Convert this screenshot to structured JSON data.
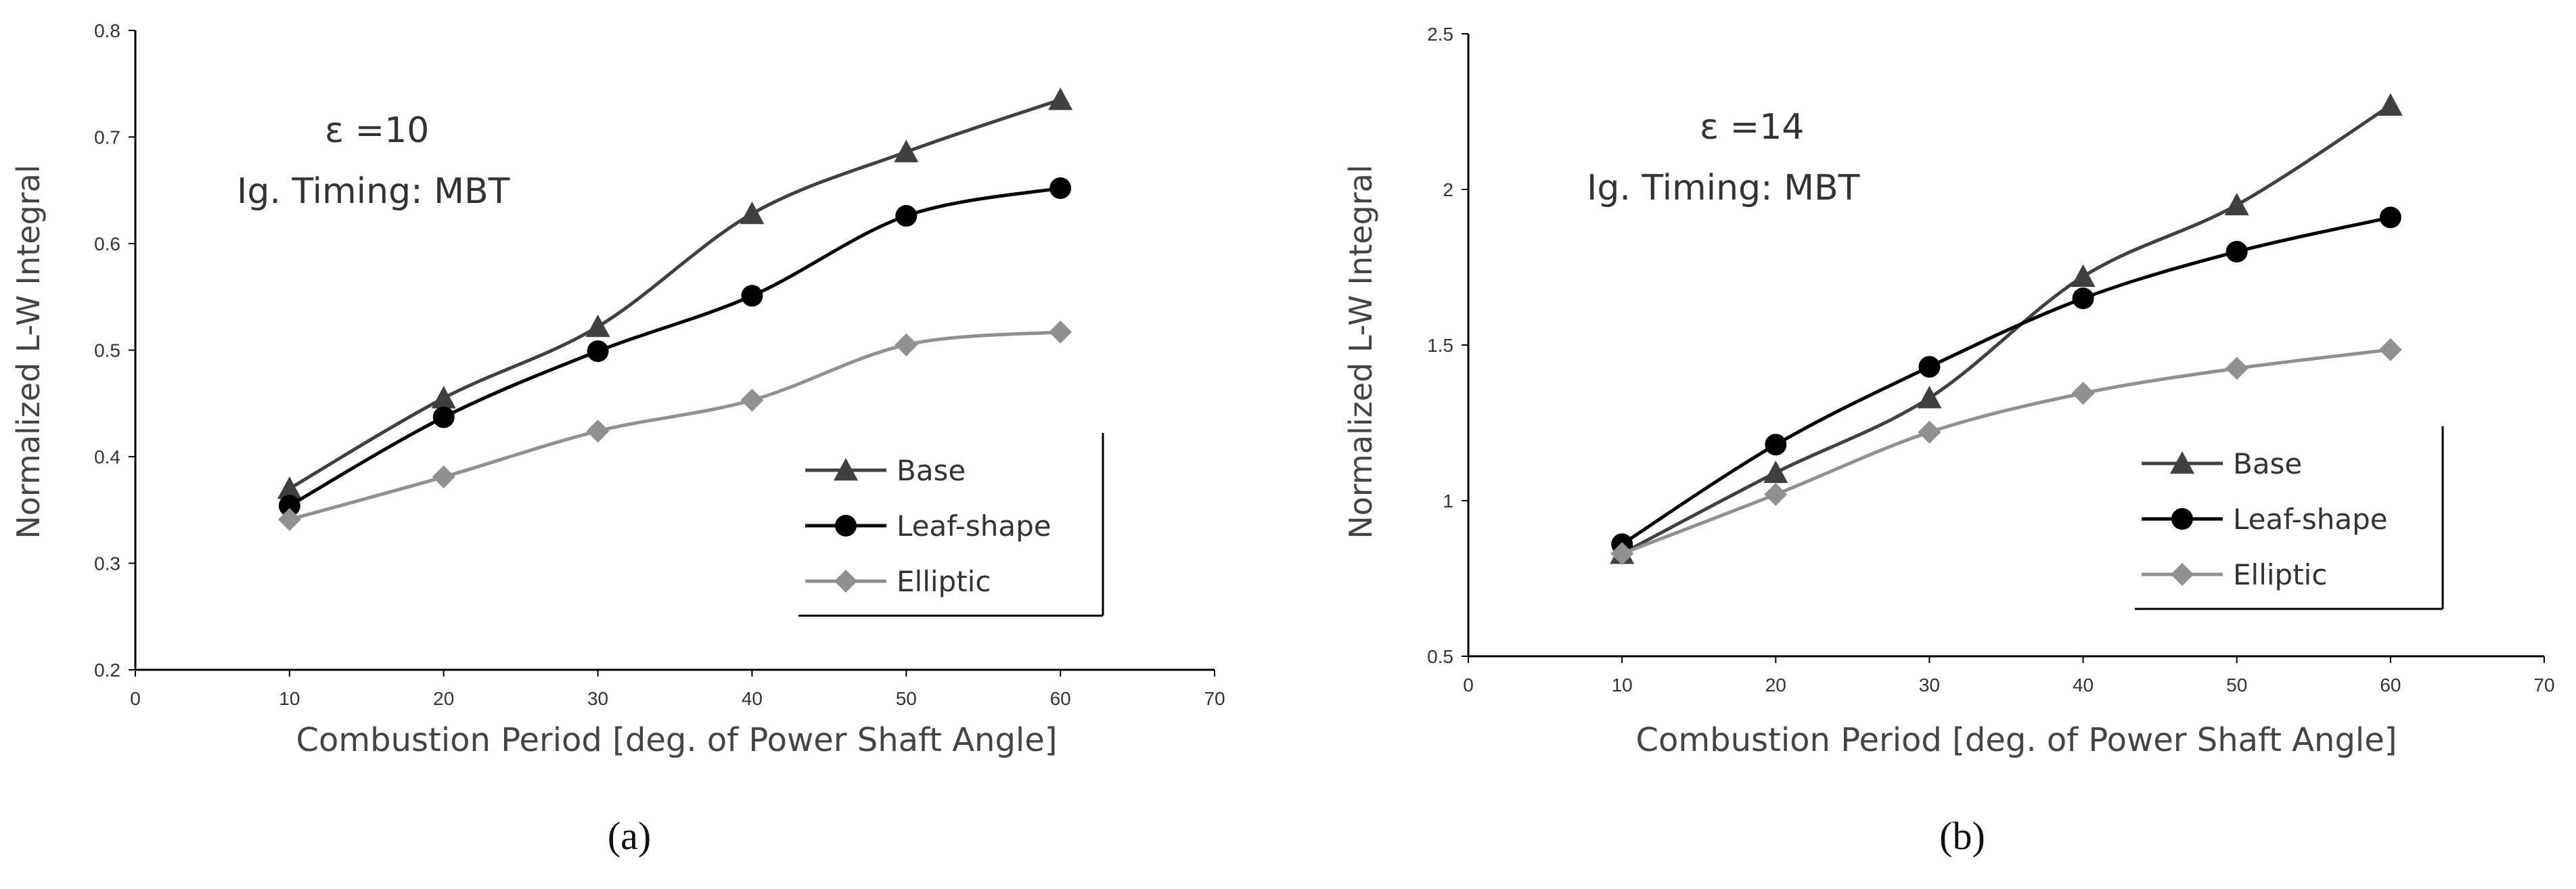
{
  "chart_data": [
    {
      "type": "line",
      "panel_label": "(a)",
      "annotation": [
        "ε =10",
        "Ig. Timing: MBT"
      ],
      "xlabel": "Combustion Period [deg. of Power Shaft Angle]",
      "ylabel": "Normalized L-W Integral",
      "xlim": [
        0,
        70
      ],
      "ylim": [
        0.2,
        0.8
      ],
      "xticks": [
        0,
        10,
        20,
        30,
        40,
        50,
        60,
        70
      ],
      "yticks": [
        0.2,
        0.3,
        0.4,
        0.5,
        0.6,
        0.7,
        0.8
      ],
      "x": [
        10,
        20,
        30,
        40,
        50,
        60
      ],
      "series": [
        {
          "name": "Base",
          "marker": "triangle",
          "color": "#404040",
          "values": [
            0.37,
            0.455,
            0.522,
            0.628,
            0.686,
            0.735
          ]
        },
        {
          "name": "Leaf-shape",
          "marker": "circle",
          "color": "#000000",
          "values": [
            0.354,
            0.437,
            0.499,
            0.551,
            0.626,
            0.652
          ]
        },
        {
          "name": "Elliptic",
          "marker": "diamond",
          "color": "#909090",
          "values": [
            0.341,
            0.381,
            0.424,
            0.453,
            0.505,
            0.517
          ]
        }
      ],
      "legend_position": "bottom-right",
      "grid": false
    },
    {
      "type": "line",
      "panel_label": "(b)",
      "annotation": [
        "ε =14",
        "Ig. Timing: MBT"
      ],
      "xlabel": "Combustion Period [deg. of Power Shaft Angle]",
      "ylabel": "Normalized L-W Integral",
      "xlim": [
        0,
        70
      ],
      "ylim": [
        0.5,
        2.5
      ],
      "xticks": [
        0,
        10,
        20,
        30,
        40,
        50,
        60,
        70
      ],
      "yticks": [
        0.5,
        1,
        1.5,
        2,
        2.5
      ],
      "x": [
        10,
        20,
        30,
        40,
        50,
        60
      ],
      "series": [
        {
          "name": "Base",
          "marker": "triangle",
          "color": "#404040",
          "values": [
            0.83,
            1.09,
            1.33,
            1.72,
            1.95,
            2.27
          ]
        },
        {
          "name": "Leaf-shape",
          "marker": "circle",
          "color": "#000000",
          "values": [
            0.86,
            1.18,
            1.43,
            1.65,
            1.8,
            1.91
          ]
        },
        {
          "name": "Elliptic",
          "marker": "diamond",
          "color": "#909090",
          "values": [
            0.83,
            1.02,
            1.22,
            1.345,
            1.425,
            1.485
          ]
        }
      ],
      "legend_position": "bottom-right",
      "grid": false
    }
  ]
}
